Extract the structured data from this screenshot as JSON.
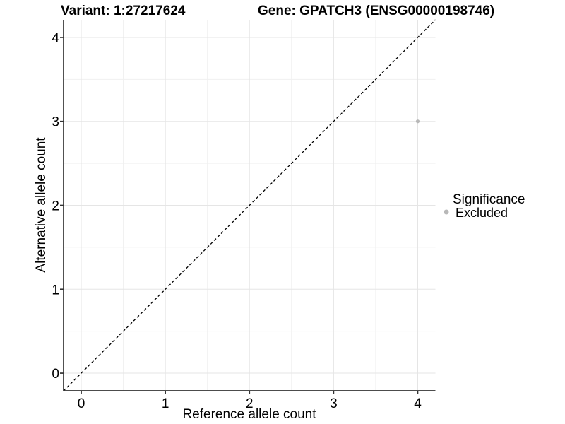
{
  "chart_data": {
    "type": "scatter",
    "title_left": "Variant: 1:27217624",
    "title_right": "Gene: GPATCH3 (ENSG00000198746)",
    "xlabel": "Reference allele count",
    "ylabel": "Alternative allele count",
    "xlim": [
      -0.21,
      4.21
    ],
    "ylim": [
      -0.21,
      4.21
    ],
    "x_ticks": [
      0,
      1,
      2,
      3,
      4
    ],
    "y_ticks": [
      0,
      1,
      2,
      3,
      4
    ],
    "x_minor_ticks": [
      0.5,
      1.5,
      2.5,
      3.5
    ],
    "y_minor_ticks": [
      0.5,
      1.5,
      2.5,
      3.5
    ],
    "grid": "major+minor",
    "reference_line": {
      "kind": "identity",
      "from": [
        -0.21,
        -0.21
      ],
      "to": [
        4.21,
        4.21
      ],
      "style": "dashed",
      "color": "#000000"
    },
    "series": [
      {
        "name": "Excluded",
        "color": "#b8b8b8",
        "points": [
          {
            "x": 4,
            "y": 3
          }
        ]
      }
    ],
    "legend": {
      "title": "Significance",
      "position": "right",
      "items": [
        {
          "label": "Excluded",
          "color": "#b8b8b8"
        }
      ]
    },
    "colors": {
      "background": "#ffffff",
      "grid_major": "#e5e5e5",
      "grid_minor": "#f0f0f0",
      "axis": "#333333",
      "text": "#000000",
      "point": "#b8b8b8"
    }
  }
}
